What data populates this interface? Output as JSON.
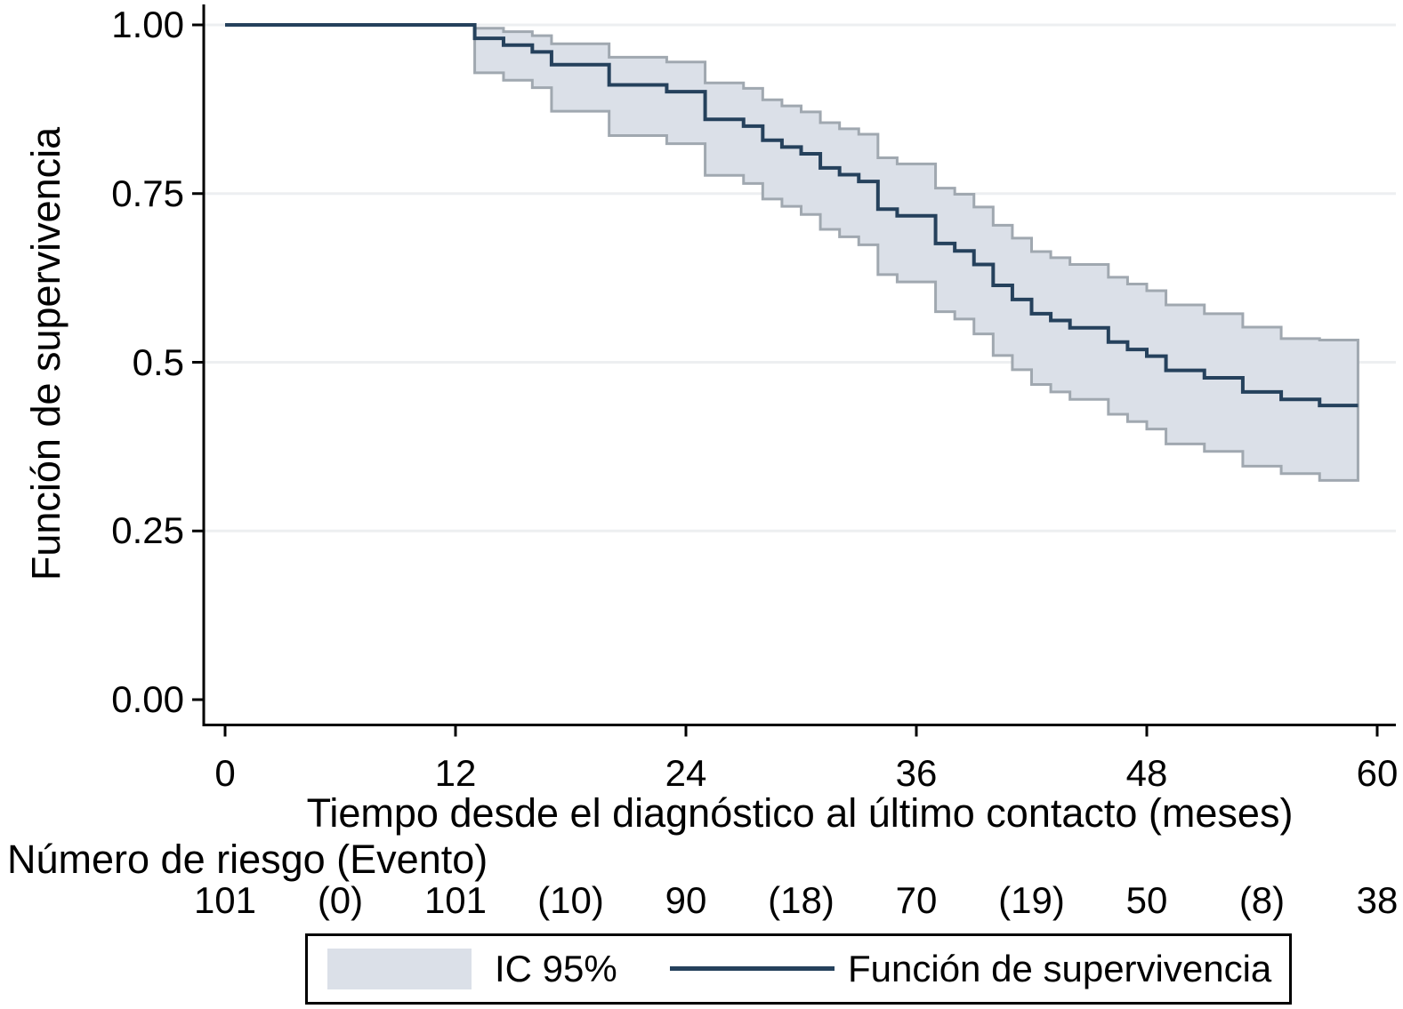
{
  "figure": {
    "y_axis": {
      "title": "Función de supervivencia",
      "ticks": [
        {
          "v": 1.0,
          "label": "1.00"
        },
        {
          "v": 0.75,
          "label": "0.75"
        },
        {
          "v": 0.5,
          "label": "0.5"
        },
        {
          "v": 0.25,
          "label": "0.25"
        },
        {
          "v": 0.0,
          "label": "0.00"
        }
      ]
    },
    "x_axis": {
      "title": "Tiempo desde el diagnóstico al último contacto (meses)",
      "ticks": [
        {
          "t": 0,
          "label": "0"
        },
        {
          "t": 12,
          "label": "12"
        },
        {
          "t": 24,
          "label": "24"
        },
        {
          "t": 36,
          "label": "36"
        },
        {
          "t": 48,
          "label": "48"
        },
        {
          "t": 60,
          "label": "60"
        }
      ]
    },
    "risk_table": {
      "header": "Número de riesgo (Evento)",
      "cells": [
        {
          "t": 0,
          "label": "101"
        },
        {
          "t": 6,
          "label": "(0)"
        },
        {
          "t": 12,
          "label": "101"
        },
        {
          "t": 18,
          "label": "(10)"
        },
        {
          "t": 24,
          "label": "90"
        },
        {
          "t": 30,
          "label": "(18)"
        },
        {
          "t": 36,
          "label": "70"
        },
        {
          "t": 42,
          "label": "(19)"
        },
        {
          "t": 48,
          "label": "50"
        },
        {
          "t": 54,
          "label": "(8)"
        },
        {
          "t": 60,
          "label": "38"
        }
      ]
    },
    "legend": {
      "ci_label": "IC 95%",
      "line_label": "Función de supervivencia"
    },
    "colors": {
      "line": "#25415c",
      "band_fill": "#dbe0e8",
      "band_edge": "#a0a8b0",
      "grid": "#edeff1",
      "axis": "#000000",
      "background": "#ffffff"
    }
  },
  "chart_data": {
    "type": "line",
    "subtype": "kaplan-meier-step-with-ci-band",
    "title": "",
    "xlabel": "Tiempo desde el diagnóstico al último contacto (meses)",
    "ylabel": "Función de supervivencia",
    "xlim": [
      0,
      61
    ],
    "ylim": [
      0,
      1
    ],
    "grid": "horizontal",
    "legend_position": "bottom",
    "series": [
      {
        "name": "Función de supervivencia",
        "style": "step-line"
      },
      {
        "name": "IC 95%",
        "style": "step-band"
      }
    ],
    "start": {
      "t": 0,
      "s": 1.0
    },
    "end_t": 59,
    "steps": [
      {
        "t": 13.0,
        "s": 0.98,
        "lo": 0.929,
        "hi": 0.995
      },
      {
        "t": 14.5,
        "s": 0.97,
        "lo": 0.918,
        "hi": 0.99
      },
      {
        "t": 16.0,
        "s": 0.96,
        "lo": 0.907,
        "hi": 0.984
      },
      {
        "t": 17.0,
        "s": 0.941,
        "lo": 0.872,
        "hi": 0.972
      },
      {
        "t": 20.0,
        "s": 0.911,
        "lo": 0.836,
        "hi": 0.952
      },
      {
        "t": 23.0,
        "s": 0.901,
        "lo": 0.824,
        "hi": 0.945
      },
      {
        "t": 25.0,
        "s": 0.86,
        "lo": 0.777,
        "hi": 0.914
      },
      {
        "t": 27.0,
        "s": 0.85,
        "lo": 0.765,
        "hi": 0.906
      },
      {
        "t": 28.0,
        "s": 0.829,
        "lo": 0.742,
        "hi": 0.889
      },
      {
        "t": 29.0,
        "s": 0.819,
        "lo": 0.731,
        "hi": 0.88
      },
      {
        "t": 30.0,
        "s": 0.809,
        "lo": 0.719,
        "hi": 0.871
      },
      {
        "t": 31.0,
        "s": 0.788,
        "lo": 0.697,
        "hi": 0.855
      },
      {
        "t": 32.0,
        "s": 0.778,
        "lo": 0.686,
        "hi": 0.846
      },
      {
        "t": 33.0,
        "s": 0.768,
        "lo": 0.674,
        "hi": 0.838
      },
      {
        "t": 34.0,
        "s": 0.727,
        "lo": 0.63,
        "hi": 0.803
      },
      {
        "t": 35.0,
        "s": 0.717,
        "lo": 0.619,
        "hi": 0.794
      },
      {
        "t": 37.0,
        "s": 0.676,
        "lo": 0.575,
        "hi": 0.758
      },
      {
        "t": 38.0,
        "s": 0.665,
        "lo": 0.564,
        "hi": 0.749
      },
      {
        "t": 39.0,
        "s": 0.645,
        "lo": 0.542,
        "hi": 0.73
      },
      {
        "t": 40.0,
        "s": 0.614,
        "lo": 0.51,
        "hi": 0.703
      },
      {
        "t": 41.0,
        "s": 0.593,
        "lo": 0.489,
        "hi": 0.684
      },
      {
        "t": 42.0,
        "s": 0.572,
        "lo": 0.467,
        "hi": 0.664
      },
      {
        "t": 43.0,
        "s": 0.562,
        "lo": 0.456,
        "hi": 0.655
      },
      {
        "t": 44.0,
        "s": 0.551,
        "lo": 0.445,
        "hi": 0.645
      },
      {
        "t": 46.0,
        "s": 0.53,
        "lo": 0.423,
        "hi": 0.626
      },
      {
        "t": 47.0,
        "s": 0.519,
        "lo": 0.412,
        "hi": 0.616
      },
      {
        "t": 48.0,
        "s": 0.509,
        "lo": 0.401,
        "hi": 0.606
      },
      {
        "t": 49.0,
        "s": 0.488,
        "lo": 0.379,
        "hi": 0.585
      },
      {
        "t": 51.0,
        "s": 0.477,
        "lo": 0.368,
        "hi": 0.572
      },
      {
        "t": 53.0,
        "s": 0.456,
        "lo": 0.346,
        "hi": 0.552
      },
      {
        "t": 55.0,
        "s": 0.445,
        "lo": 0.335,
        "hi": 0.535
      },
      {
        "t": 57.0,
        "s": 0.436,
        "lo": 0.325,
        "hi": 0.533
      }
    ],
    "risk_table": {
      "times": [
        0,
        12,
        24,
        36,
        48,
        60
      ],
      "at_risk": [
        101,
        101,
        90,
        70,
        50,
        38
      ],
      "events_in_interval": [
        0,
        10,
        18,
        19,
        8
      ]
    }
  }
}
